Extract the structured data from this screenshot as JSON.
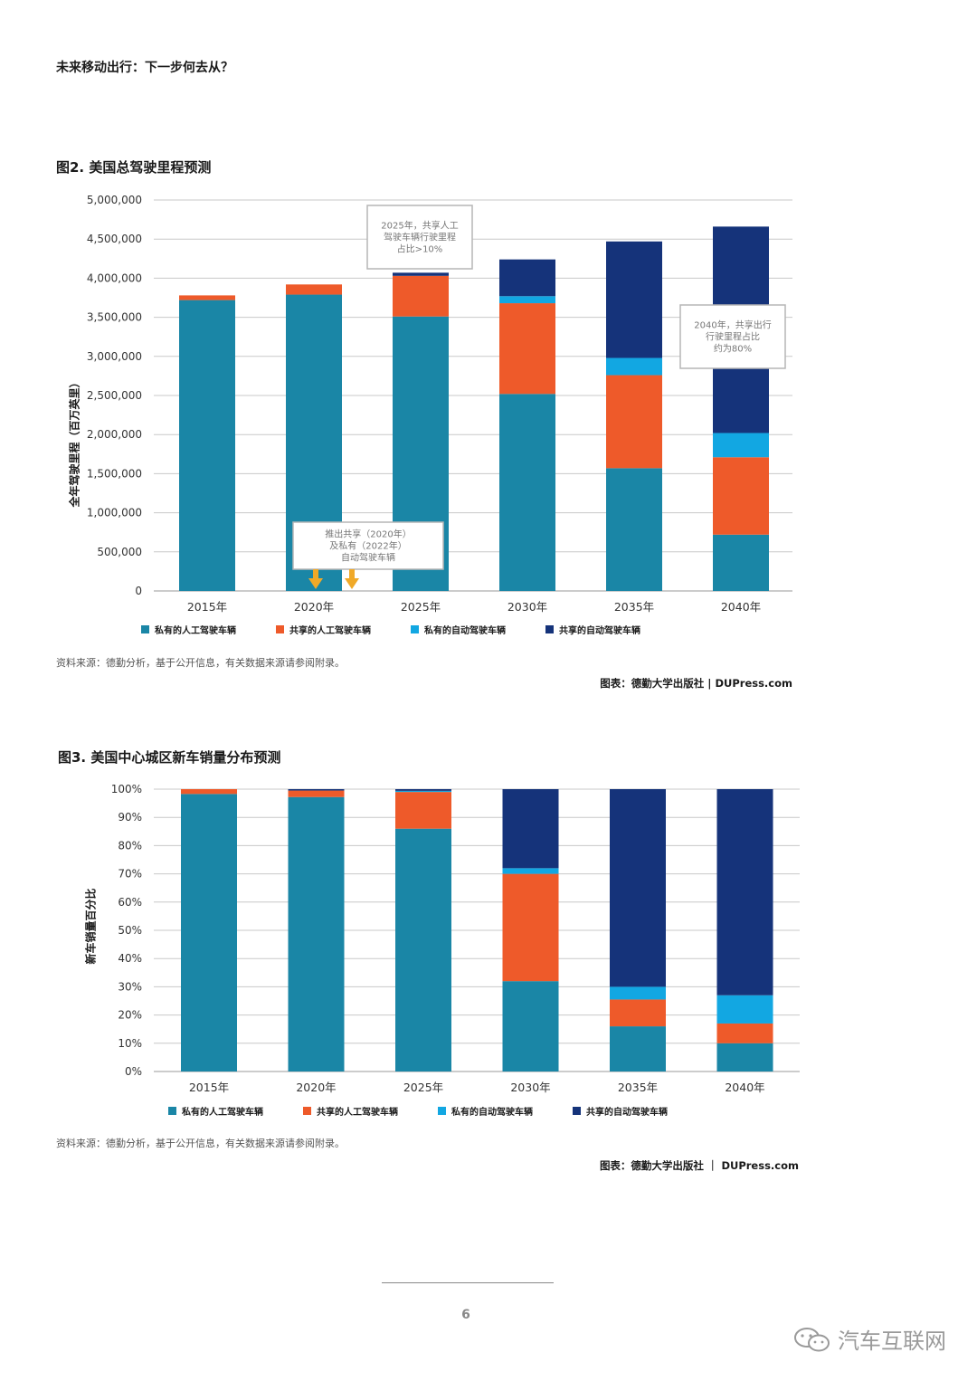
{
  "header": {
    "title": "未来移动出行：下一步何去从？"
  },
  "colors": {
    "private_human": "#1a86a6",
    "shared_human": "#ee5a2a",
    "private_auto": "#12a7e2",
    "shared_auto": "#15337a"
  },
  "legend": [
    {
      "key": "private_human",
      "label": "私有的人工驾驶车辆"
    },
    {
      "key": "shared_human",
      "label": "共享的人工驾驶车辆"
    },
    {
      "key": "private_auto",
      "label": "私有的自动驾驶车辆"
    },
    {
      "key": "shared_auto",
      "label": "共享的自动驾驶车辆"
    }
  ],
  "fig2": {
    "title": "图2. 美国总驾驶里程预测",
    "source": "资料来源：德勤分析，基于公开信息，有关数据来源请参阅附录。",
    "credit": "图表：德勤大学出版社 | DUPress.com",
    "annotations": [
      {
        "lines": [
          "2025年，共享人工",
          "驾驶车辆行驶里程",
          "占比>10%"
        ]
      },
      {
        "lines": [
          "2040年，共享出行",
          "行驶里程占比",
          "约为80%"
        ]
      },
      {
        "lines": [
          "推出共享（2020年）",
          "及私有（2022年）",
          "自动驾驶车辆"
        ]
      }
    ]
  },
  "fig3": {
    "title": "图3. 美国中心城区新车销量分布预测",
    "source": "资料来源：德勤分析，基于公开信息，有关数据来源请参阅附录。",
    "credit": "图表：德勤大学出版社 ｜ DUPress.com"
  },
  "chart_data": [
    {
      "type": "bar",
      "stacked": true,
      "title": "图2. 美国总驾驶里程预测",
      "ylabel": "全年驾驶里程（百万英里）",
      "categories": [
        "2015年",
        "2020年",
        "2025年",
        "2030年",
        "2035年",
        "2040年"
      ],
      "ylim": [
        0,
        5000000
      ],
      "yticks": [
        0,
        500000,
        1000000,
        1500000,
        2000000,
        2500000,
        3000000,
        3500000,
        4000000,
        4500000,
        5000000
      ],
      "ytick_labels": [
        "0",
        "500,000",
        "1,000,000",
        "1,500,000",
        "2,000,000",
        "2,500,000",
        "3,000,000",
        "3,500,000",
        "4,000,000",
        "4,500,000",
        "5,000,000"
      ],
      "series": [
        {
          "name": "私有的人工驾驶车辆",
          "values": [
            3720000,
            3790000,
            3510000,
            2520000,
            1570000,
            720000
          ]
        },
        {
          "name": "共享的人工驾驶车辆",
          "values": [
            60000,
            130000,
            520000,
            1160000,
            1190000,
            990000
          ]
        },
        {
          "name": "私有的自动驾驶车辆",
          "values": [
            0,
            0,
            0,
            90000,
            220000,
            310000
          ]
        },
        {
          "name": "共享的自动驾驶车辆",
          "values": [
            0,
            0,
            40000,
            470000,
            1490000,
            2640000
          ]
        }
      ],
      "grid": true,
      "legend_position": "bottom"
    },
    {
      "type": "bar",
      "stacked": true,
      "title": "图3. 美国中心城区新车销量分布预测",
      "ylabel": "新车销量百分比",
      "categories": [
        "2015年",
        "2020年",
        "2025年",
        "2030年",
        "2035年",
        "2040年"
      ],
      "ylim": [
        0,
        100
      ],
      "yticks": [
        0,
        10,
        20,
        30,
        40,
        50,
        60,
        70,
        80,
        90,
        100
      ],
      "ytick_labels": [
        "0%",
        "10%",
        "20%",
        "30%",
        "40%",
        "50%",
        "60%",
        "70%",
        "80%",
        "90%",
        "100%"
      ],
      "series": [
        {
          "name": "私有的人工驾驶车辆",
          "values": [
            98.3,
            97.2,
            86.0,
            32.0,
            16.0,
            10.0
          ]
        },
        {
          "name": "共享的人工驾驶车辆",
          "values": [
            1.7,
            2.3,
            13.0,
            38.0,
            9.5,
            7.0
          ]
        },
        {
          "name": "私有的自动驾驶车辆",
          "values": [
            0,
            0,
            0.4,
            2.0,
            4.5,
            10.0
          ]
        },
        {
          "name": "共享的自动驾驶车辆",
          "values": [
            0,
            0.5,
            0.6,
            28.0,
            70.0,
            73.0
          ]
        }
      ],
      "grid": true,
      "legend_position": "bottom"
    }
  ],
  "footer": {
    "page_number": "6",
    "watermark": "汽车互联网"
  }
}
